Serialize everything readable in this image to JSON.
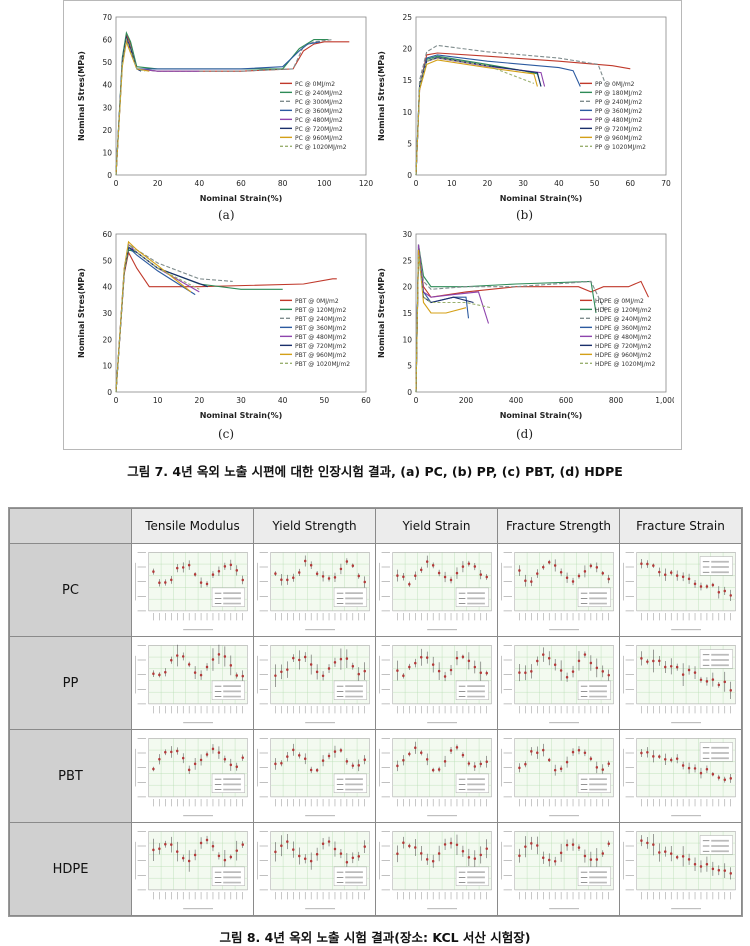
{
  "figure7": {
    "caption": "그림 7. 4년 옥외 노출 시편에 대한 인장시험 결과, (a) PC, (b) PP, (c) PBT, (d) HDPE",
    "panels": [
      {
        "label": "(a)",
        "xlabel": "Nominal Strain(%)",
        "ylabel": "Nominal Stres(MPa)",
        "xticks": [
          "0",
          "20",
          "40",
          "60",
          "80",
          "100",
          "120"
        ],
        "yticks": [
          "0",
          "10",
          "20",
          "30",
          "40",
          "50",
          "60",
          "70"
        ],
        "legend": [
          "PC @ 0MJ/m2",
          "PC @ 240MJ/m2",
          "PC @ 300MJ/m2",
          "PC @ 360MJ/m2",
          "PC @ 480MJ/m2",
          "PC @ 720MJ/m2",
          "PC @ 960MJ/m2",
          "PC @ 1020MJ/m2"
        ]
      },
      {
        "label": "(b)",
        "xlabel": "Nominal Strain(%)",
        "ylabel": "Nominal Stres(MPa)",
        "xticks": [
          "0",
          "10",
          "20",
          "30",
          "40",
          "50",
          "60",
          "70"
        ],
        "yticks": [
          "0",
          "5",
          "10",
          "15",
          "20",
          "25"
        ],
        "legend": [
          "PP @ 0MJ/m2",
          "PP @ 180MJ/m2",
          "PP @ 240MJ/m2",
          "PP @ 360MJ/m2",
          "PP @ 480MJ/m2",
          "PP @ 720MJ/m2",
          "PP @ 960MJ/m2",
          "PP @ 1020MJ/m2"
        ]
      },
      {
        "label": "(c)",
        "xlabel": "Nominal Strain(%)",
        "ylabel": "Nominal Stres(MPa)",
        "xticks": [
          "0",
          "10",
          "20",
          "30",
          "40",
          "50",
          "60"
        ],
        "yticks": [
          "0",
          "10",
          "20",
          "30",
          "40",
          "50",
          "60"
        ],
        "legend": [
          "PBT @ 0MJ/m2",
          "PBT @ 120MJ/m2",
          "PBT @ 240MJ/m2",
          "PBT @ 360MJ/m2",
          "PBT @ 480MJ/m2",
          "PBT @ 720MJ/m2",
          "PBT @ 960MJ/m2",
          "PBT @ 1020MJ/m2"
        ]
      },
      {
        "label": "(d)",
        "xlabel": "Nominal Strain(%)",
        "ylabel": "Nominal Stres(MPa)",
        "xticks": [
          "0",
          "200",
          "400",
          "600",
          "800",
          "1,000"
        ],
        "yticks": [
          "0",
          "5",
          "10",
          "15",
          "20",
          "25",
          "30"
        ],
        "legend": [
          "HDPE @ 0MJ/m2",
          "HDPE @ 120MJ/m2",
          "HDPE @ 240MJ/m2",
          "HDPE @ 360MJ/m2",
          "HDPE @ 480MJ/m2",
          "HDPE @ 720MJ/m2",
          "HDPE @ 960MJ/m2",
          "HDPE @ 1020MJ/m2"
        ]
      }
    ]
  },
  "figure8": {
    "caption": "그림 8. 4년 옥외 노출 시험 결과(장소: KCL 서산 시험장)",
    "columns": [
      "Tensile Modulus",
      "Yield Strength",
      "Yield Strain",
      "Fracture Strength",
      "Fracture Strain"
    ],
    "rows": [
      "PC",
      "PP",
      "PBT",
      "HDPE"
    ]
  },
  "series_colors": [
    "#c0392b",
    "#2e8b57",
    "#7f8c8d",
    "#2c5aa0",
    "#8e44ad",
    "#1a2f6b",
    "#d4a017",
    "#9ab070"
  ],
  "chart_data": [
    {
      "type": "line",
      "xlabel": "Nominal Strain(%)",
      "ylabel": "Nominal Stres(MPa)",
      "xlim": [
        0,
        120
      ],
      "ylim": [
        0,
        70
      ],
      "series": [
        {
          "name": "PC @ 0MJ/m2",
          "x": [
            0,
            3,
            5,
            7,
            10,
            20,
            40,
            60,
            85,
            90,
            95,
            100,
            112
          ],
          "y": [
            0,
            50,
            62,
            58,
            47,
            46,
            46,
            46,
            47,
            55,
            58,
            59,
            59
          ]
        },
        {
          "name": "PC @ 240MJ/m2",
          "x": [
            0,
            3,
            5,
            7,
            10,
            20,
            40,
            60,
            80,
            88,
            95,
            102
          ],
          "y": [
            0,
            52,
            63,
            59,
            48,
            47,
            47,
            47,
            47,
            56,
            60,
            60
          ]
        },
        {
          "name": "PC @ 300MJ/m2",
          "x": [
            0,
            3,
            5,
            7,
            10,
            20,
            40,
            60,
            85,
            90,
            95,
            104
          ],
          "y": [
            0,
            51,
            61,
            57,
            47,
            46,
            46,
            46,
            47,
            57,
            59,
            60
          ]
        },
        {
          "name": "PC @ 360MJ/m2",
          "x": [
            0,
            3,
            5,
            7,
            10,
            20,
            40,
            60,
            80,
            88,
            92,
            98
          ],
          "y": [
            0,
            50,
            60,
            56,
            47,
            47,
            47,
            47,
            48,
            55,
            58,
            59
          ]
        },
        {
          "name": "PC @ 480MJ/m2",
          "x": [
            0,
            3,
            5,
            7,
            10,
            20,
            30,
            40
          ],
          "y": [
            0,
            49,
            60,
            55,
            47,
            46,
            46,
            46
          ]
        },
        {
          "name": "PC @ 720MJ/m2",
          "x": [
            0,
            3,
            5,
            7,
            10,
            12
          ],
          "y": [
            0,
            50,
            61,
            56,
            47,
            46
          ]
        },
        {
          "name": "PC @ 960MJ/m2",
          "x": [
            0,
            3,
            5,
            7,
            10,
            16
          ],
          "y": [
            0,
            48,
            59,
            54,
            47,
            46
          ]
        },
        {
          "name": "PC @ 1020MJ/m2",
          "x": [
            0,
            3,
            5,
            7,
            10,
            14
          ],
          "y": [
            0,
            49,
            60,
            55,
            47,
            46
          ]
        }
      ]
    },
    {
      "type": "line",
      "xlabel": "Nominal Strain(%)",
      "ylabel": "Nominal Stres(MPa)",
      "xlim": [
        0,
        70
      ],
      "ylim": [
        0,
        25
      ],
      "series": [
        {
          "name": "PP @ 0MJ/m2",
          "x": [
            0,
            1,
            3,
            6,
            20,
            40,
            55,
            60
          ],
          "y": [
            0,
            14,
            19,
            19.3,
            18.8,
            18,
            17.3,
            16.8
          ]
        },
        {
          "name": "PP @ 180MJ/m2",
          "x": [
            0,
            1,
            3,
            6,
            20,
            30,
            34,
            35
          ],
          "y": [
            0,
            14,
            18.3,
            18.8,
            17.5,
            16.5,
            16,
            14
          ]
        },
        {
          "name": "PP @ 240MJ/m2",
          "x": [
            0,
            1,
            3,
            6,
            20,
            40,
            51,
            53
          ],
          "y": [
            0,
            15,
            19.5,
            20.5,
            19.5,
            18.5,
            17.5,
            14.5
          ]
        },
        {
          "name": "PP @ 360MJ/m2",
          "x": [
            0,
            1,
            3,
            6,
            20,
            40,
            44,
            46
          ],
          "y": [
            0,
            14,
            18.5,
            19,
            18,
            17,
            16.5,
            14
          ]
        },
        {
          "name": "PP @ 480MJ/m2",
          "x": [
            0,
            1,
            3,
            6,
            20,
            35,
            36
          ],
          "y": [
            0,
            13.5,
            18,
            18.5,
            17.2,
            16.2,
            14
          ]
        },
        {
          "name": "PP @ 720MJ/m2",
          "x": [
            0,
            1,
            3,
            6,
            20,
            34,
            35
          ],
          "y": [
            0,
            14,
            18,
            18.6,
            17.3,
            16.2,
            14
          ]
        },
        {
          "name": "PP @ 960MJ/m2",
          "x": [
            0,
            1,
            3,
            6,
            20,
            33,
            34
          ],
          "y": [
            0,
            13.5,
            17.5,
            18.2,
            17,
            16,
            14
          ]
        },
        {
          "name": "PP @ 1020MJ/m2",
          "x": [
            0,
            1,
            3,
            6,
            20,
            33
          ],
          "y": [
            0,
            14,
            18,
            18.5,
            17.3,
            14.5
          ]
        }
      ]
    },
    {
      "type": "line",
      "xlabel": "Nominal Strain(%)",
      "ylabel": "Nominal Stres(MPa)",
      "xlim": [
        0,
        60
      ],
      "ylim": [
        0,
        60
      ],
      "series": [
        {
          "name": "PBT @ 0MJ/m2",
          "x": [
            0,
            2,
            3,
            5,
            8,
            10,
            20,
            45,
            52,
            53
          ],
          "y": [
            0,
            45,
            53,
            47,
            40,
            40,
            40,
            41,
            43,
            43
          ]
        },
        {
          "name": "PBT @ 120MJ/m2",
          "x": [
            0,
            2,
            3,
            5,
            10,
            20,
            30,
            40
          ],
          "y": [
            0,
            46,
            54,
            53,
            47,
            41,
            39,
            39
          ]
        },
        {
          "name": "PBT @ 240MJ/m2",
          "x": [
            0,
            2,
            3,
            5,
            10,
            20,
            28
          ],
          "y": [
            0,
            47,
            56,
            54,
            49,
            43,
            42
          ]
        },
        {
          "name": "PBT @ 360MJ/m2",
          "x": [
            0,
            2,
            3,
            5,
            10,
            19
          ],
          "y": [
            0,
            46,
            55,
            52,
            46,
            37
          ]
        },
        {
          "name": "PBT @ 480MJ/m2",
          "x": [
            0,
            2,
            3,
            5,
            10,
            20
          ],
          "y": [
            0,
            47,
            56,
            53,
            47,
            38
          ]
        },
        {
          "name": "PBT @ 720MJ/m2",
          "x": [
            0,
            2,
            3,
            5,
            10,
            22
          ],
          "y": [
            0,
            46,
            55,
            53,
            47,
            40
          ]
        },
        {
          "name": "PBT @ 960MJ/m2",
          "x": [
            0,
            2,
            3,
            5,
            10,
            18
          ],
          "y": [
            0,
            47,
            57,
            54,
            48,
            38
          ]
        },
        {
          "name": "PBT @ 1020MJ/m2",
          "x": [
            0,
            2,
            3,
            5,
            10,
            20
          ],
          "y": [
            0,
            46,
            56,
            53,
            47,
            39
          ]
        }
      ]
    },
    {
      "type": "line",
      "xlabel": "Nominal Strain(%)",
      "ylabel": "Nominal Stres(MPa)",
      "xlim": [
        0,
        1000
      ],
      "ylim": [
        0,
        30
      ],
      "series": [
        {
          "name": "HDPE @ 0MJ/m2",
          "x": [
            0,
            10,
            30,
            60,
            200,
            400,
            650,
            700,
            750,
            850,
            900,
            930
          ],
          "y": [
            0,
            27,
            20,
            18,
            19,
            20,
            20,
            19,
            20,
            20,
            21,
            18
          ]
        },
        {
          "name": "HDPE @ 120MJ/m2",
          "x": [
            0,
            10,
            30,
            60,
            200,
            400,
            700,
            720
          ],
          "y": [
            0,
            28,
            22,
            20,
            20,
            20.5,
            21,
            15
          ]
        },
        {
          "name": "HDPE @ 240MJ/m2",
          "x": [
            0,
            10,
            30,
            60,
            200,
            400,
            700,
            760
          ],
          "y": [
            0,
            28,
            21,
            19.5,
            20,
            20,
            21,
            15
          ]
        },
        {
          "name": "HDPE @ 360MJ/m2",
          "x": [
            0,
            10,
            30,
            60,
            150,
            200,
            210
          ],
          "y": [
            0,
            27,
            19,
            17,
            18,
            18,
            14
          ]
        },
        {
          "name": "HDPE @ 480MJ/m2",
          "x": [
            0,
            10,
            30,
            60,
            150,
            250,
            290
          ],
          "y": [
            0,
            28,
            19,
            18,
            18.5,
            19,
            13
          ]
        },
        {
          "name": "HDPE @ 720MJ/m2",
          "x": [
            0,
            10,
            30,
            60,
            150,
            230
          ],
          "y": [
            0,
            27,
            18,
            17,
            18,
            17
          ]
        },
        {
          "name": "HDPE @ 960MJ/m2",
          "x": [
            0,
            10,
            30,
            60,
            120,
            200
          ],
          "y": [
            0,
            27,
            17,
            15,
            15,
            16
          ]
        },
        {
          "name": "HDPE @ 1020MJ/m2",
          "x": [
            0,
            10,
            30,
            60,
            200,
            300
          ],
          "y": [
            0,
            26,
            18,
            17,
            17,
            16
          ]
        }
      ]
    }
  ]
}
